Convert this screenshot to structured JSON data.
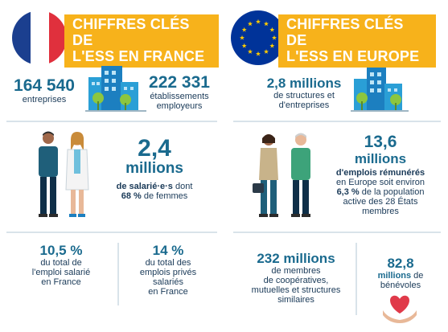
{
  "france": {
    "title_line1": "Chiffres clés de",
    "title_line2": "l'ESS en France",
    "enterprises_number": "164 540",
    "enterprises_label": "entreprises",
    "employers_number": "222 331",
    "employers_label_1": "établissements",
    "employers_label_2": "employeurs",
    "jobs_number": "2,4",
    "jobs_unit": "millions",
    "jobs_desc_1_bold": "de salarié·e·s",
    "jobs_desc_1_rest": " dont",
    "jobs_desc_2_bold": "68 %",
    "jobs_desc_2_rest": " de femmes",
    "stat1_number": "10,5 %",
    "stat1_line1": "du total de",
    "stat1_line2": "l'emploi salarié",
    "stat1_line3": "en France",
    "stat2_number": "14 %",
    "stat2_line1": "du total des",
    "stat2_line2": "emplois privés",
    "stat2_line3": "salariés",
    "stat2_line4": "en France"
  },
  "europe": {
    "title_line1": "Chiffres clés de",
    "title_line2": "l'ESS en Europe",
    "structures_number": "2,8 millions",
    "structures_line1": "de structures et",
    "structures_line2": "d'entreprises",
    "jobs_number": "13,6",
    "jobs_unit": "millions",
    "jobs_line1": "d'emplois rémunérés",
    "jobs_line2": "en Europe soit environ",
    "jobs_line3_bold": "6,3 %",
    "jobs_line3_rest": " de la population",
    "jobs_line4": "active des 28 États",
    "jobs_line5": "membres",
    "members_number": "232 millions",
    "members_line1": "de membres",
    "members_line2": "de coopératives,",
    "members_line3": "mutuelles et structures",
    "members_line4": "similaires",
    "volunteers_number": "82,8",
    "volunteers_unit": "millions",
    "volunteers_rest": " de",
    "volunteers_line2": "bénévoles"
  },
  "colors": {
    "banner": "#f7b21b",
    "number": "#1a6a8e",
    "text": "#1a3a58",
    "eu_blue": "#003399",
    "eu_star": "#ffcc00"
  },
  "icons": [
    "france-flag-icon",
    "eu-flag-icon",
    "buildings-icon",
    "people-icon",
    "heart-hands-icon"
  ]
}
